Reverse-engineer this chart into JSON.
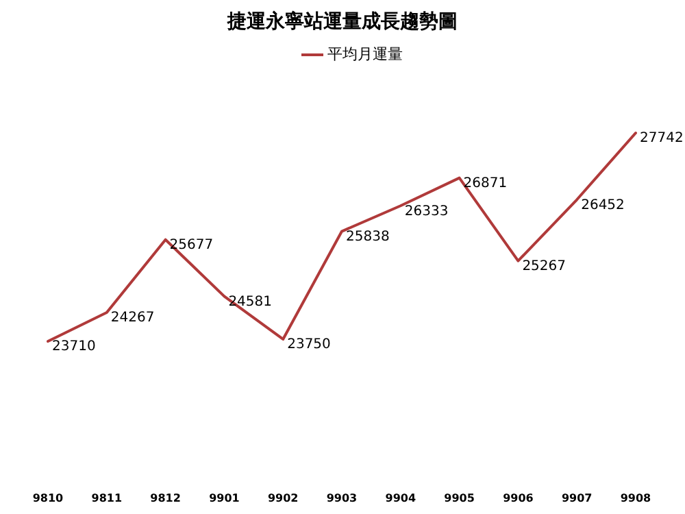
{
  "chart_data": {
    "type": "line",
    "title": "捷運永寧站運量成長趨勢圖",
    "categories": [
      "9810",
      "9811",
      "9812",
      "9901",
      "9902",
      "9903",
      "9904",
      "9905",
      "9906",
      "9907",
      "9908"
    ],
    "series": [
      {
        "name": "平均月運量",
        "color": "#b03a3a",
        "values": [
          23710,
          24267,
          25677,
          24581,
          23750,
          25838,
          26333,
          26871,
          25267,
          26452,
          27742
        ]
      }
    ],
    "data_labels": true,
    "legend": "top"
  }
}
